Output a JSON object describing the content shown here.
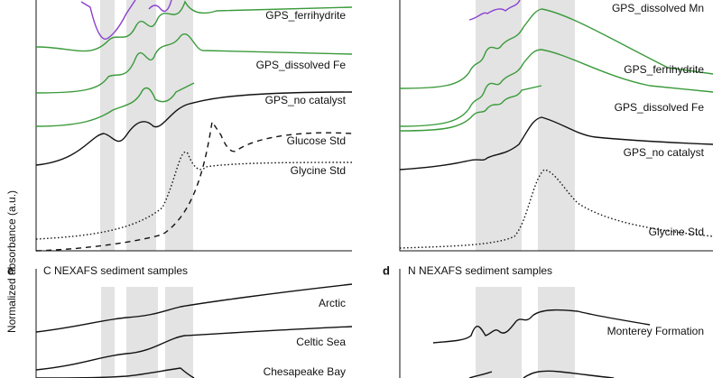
{
  "y_axis_label": "Normalized absorbance (a.u.)",
  "panel_a": {
    "labels": [
      "GPS_ferrihydrite",
      "GPS_dissolved Fe",
      "GPS_no catalyst",
      "Glucose Std",
      "Glycine Std"
    ]
  },
  "panel_b": {
    "labels": [
      "GPS_dissolved Mn",
      "GPS_ferrihydrite",
      "GPS_dissolved Fe",
      "GPS_no catalyst",
      "Glycine Std"
    ]
  },
  "panel_c": {
    "letter": "c",
    "title": "C NEXAFS sediment samples",
    "labels": [
      "Arctic",
      "Celtic Sea",
      "Chesapeake Bay"
    ]
  },
  "panel_d": {
    "letter": "d",
    "title": "N NEXAFS sediment samples",
    "labels": [
      "Monterey Formation"
    ]
  }
}
